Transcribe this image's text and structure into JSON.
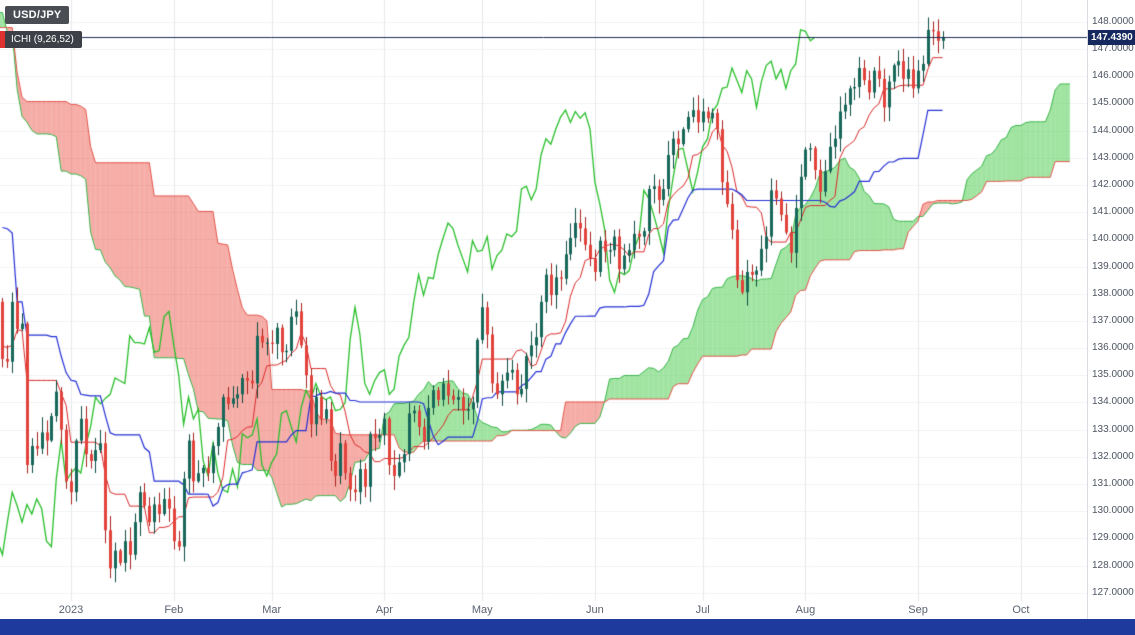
{
  "header": {
    "symbol": "USD/JPY",
    "indicator": "ICHI (9,26,52)"
  },
  "price_badge": {
    "value": "147.4390"
  },
  "chart_data": {
    "type": "candlestick",
    "title": "USD/JPY",
    "indicator": {
      "name": "Ichimoku",
      "label": "ICHI (9,26,52)",
      "params": [
        9,
        26,
        52
      ],
      "displacement": 26
    },
    "last_price": 147.439,
    "y_axis": {
      "min": 127,
      "max": 148,
      "step": 1,
      "decimals": 4,
      "view_min": 126.7,
      "view_max": 148.8
    },
    "x_ticks": [
      {
        "label": "2023",
        "index": 65
      },
      {
        "label": "Feb",
        "index": 86
      },
      {
        "label": "Mar",
        "index": 106
      },
      {
        "label": "Apr",
        "index": 129
      },
      {
        "label": "May",
        "index": 149
      },
      {
        "label": "Jun",
        "index": 172
      },
      {
        "label": "Jul",
        "index": 194
      },
      {
        "label": "Aug",
        "index": 215
      },
      {
        "label": "Sep",
        "index": 238
      },
      {
        "label": "Oct",
        "index": 259
      }
    ],
    "visible_start_index": 51,
    "closes": [
      144.55,
      144.15,
      144.65,
      145.1,
      145.3,
      145.7,
      145.85,
      146.9,
      146.85,
      147.2,
      148.7,
      148.75,
      149.05,
      149.25,
      149.9,
      150.2,
      151.45,
      147.65,
      148.95,
      147.9,
      148.8,
      148.3,
      147.25,
      146.2,
      146.6,
      146.7,
      145.7,
      146.45,
      140.7,
      138.8,
      139.9,
      139.1,
      139.55,
      140.2,
      141.25,
      140.4,
      141.1,
      139.6,
      139.0,
      138.55,
      139.1,
      138.1,
      138.05,
      135.3,
      134.3,
      136.7,
      137.0,
      136.6,
      136.7,
      136.55,
      137.7,
      135.6,
      135.5,
      137.7,
      136.7,
      136.9,
      131.7,
      132.4,
      132.3,
      132.9,
      132.6,
      133.5,
      134.4,
      133.0,
      131.1,
      130.7,
      132.6,
      133.4,
      132.1,
      131.85,
      132.25,
      132.5,
      129.3,
      127.9,
      128.55,
      128.1,
      128.9,
      128.4,
      129.6,
      130.7,
      130.2,
      129.6,
      130.25,
      129.9,
      130.45,
      130.1,
      128.9,
      128.7,
      131.2,
      132.6,
      131.1,
      131.4,
      131.6,
      131.4,
      132.4,
      133.1,
      134.2,
      133.95,
      134.15,
      134.3,
      134.9,
      134.8,
      134.7,
      136.45,
      136.2,
      136.2,
      136.15,
      136.75,
      135.85,
      135.9,
      137.15,
      137.35,
      136.1,
      135.0,
      133.2,
      134.2,
      133.4,
      133.75,
      131.85,
      131.3,
      132.5,
      131.4,
      130.8,
      130.7,
      131.55,
      130.9,
      132.85,
      132.7,
      132.8,
      133.4,
      131.7,
      131.3,
      131.8,
      132.1,
      133.6,
      133.7,
      133.1,
      132.55,
      133.8,
      134.45,
      134.1,
      134.7,
      134.25,
      134.1,
      134.2,
      133.7,
      133.75,
      134.0,
      136.3,
      137.5,
      136.5,
      134.7,
      134.3,
      134.8,
      135.1,
      135.2,
      134.3,
      134.5,
      135.7,
      136.1,
      136.4,
      137.7,
      138.7,
      137.95,
      138.6,
      138.55,
      139.45,
      140.05,
      140.6,
      140.4,
      139.8,
      139.3,
      138.8,
      139.95,
      139.55,
      139.6,
      140.1,
      138.9,
      139.4,
      139.6,
      140.2,
      140.1,
      140.3,
      141.85,
      141.95,
      141.45,
      141.85,
      143.1,
      143.7,
      143.5,
      144.05,
      144.5,
      144.75,
      144.3,
      144.7,
      144.45,
      144.65,
      144.05,
      142.1,
      141.3,
      140.35,
      138.5,
      138.05,
      138.8,
      138.7,
      138.85,
      139.65,
      140.1,
      141.8,
      141.5,
      140.9,
      140.25,
      139.5,
      141.15,
      142.3,
      143.3,
      143.35,
      142.55,
      141.75,
      142.5,
      143.4,
      143.7,
      144.7,
      144.95,
      145.55,
      145.6,
      146.3,
      145.85,
      145.4,
      146.2,
      145.9,
      144.85,
      145.8,
      146.4,
      146.55,
      145.9,
      146.25,
      145.55,
      146.2,
      146.45,
      147.7,
      147.65,
      147.3,
      147.44
    ],
    "colors": {
      "up": "#17685a",
      "up_border": "#0d4c41",
      "down": "#e2423b",
      "down_border": "#aa221c",
      "tenkan": "#d92a2a",
      "kijun": "#2530d4",
      "chikou": "#29bf2b",
      "senkou_a": "#39b54a",
      "senkou_b": "#e2554b",
      "cloud_bull": "rgba(84,206,86,0.55)",
      "cloud_bear": "rgba(238,92,80,0.5)",
      "price_line": "#1c2c55",
      "badge_bg": "#16295e",
      "grid_h": "#f1f2f4",
      "grid_v": "#e7e9ee",
      "bottom_bar": "#1e3a9c",
      "indicator_chip": "#e03131"
    }
  }
}
